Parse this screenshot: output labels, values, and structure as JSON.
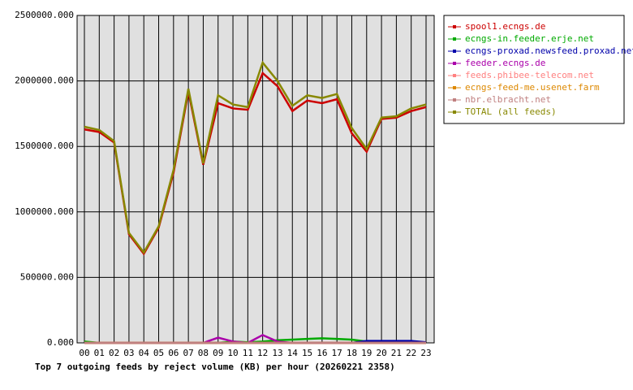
{
  "chart_data": {
    "type": "line",
    "title": "Top 7 outgoing feeds by reject volume (KB) per hour (20260221 2358)",
    "categories": [
      "00",
      "01",
      "02",
      "03",
      "04",
      "05",
      "06",
      "07",
      "08",
      "09",
      "10",
      "11",
      "12",
      "13",
      "14",
      "15",
      "16",
      "17",
      "18",
      "19",
      "20",
      "21",
      "22",
      "23"
    ],
    "ylim": [
      0,
      2500000
    ],
    "yticks": [
      {
        "value": 0,
        "label": "0.000"
      },
      {
        "value": 500000,
        "label": "500000.000"
      },
      {
        "value": 1000000,
        "label": "1000000.000"
      },
      {
        "value": 1500000,
        "label": "1500000.000"
      },
      {
        "value": 2000000,
        "label": "2000000.000"
      },
      {
        "value": 2500000,
        "label": "2500000.000"
      }
    ],
    "grid": true,
    "legend": "right",
    "series": [
      {
        "name": "spool1.ecngs.de",
        "color": "#cc0000",
        "values": [
          1630000,
          1610000,
          1530000,
          830000,
          680000,
          880000,
          1300000,
          1920000,
          1360000,
          1830000,
          1790000,
          1780000,
          2060000,
          1960000,
          1770000,
          1850000,
          1830000,
          1860000,
          1600000,
          1460000,
          1710000,
          1720000,
          1770000,
          1800000
        ]
      },
      {
        "name": "ecngs-in.feeder.erje.net",
        "color": "#00aa00",
        "values": [
          10000,
          0,
          0,
          0,
          0,
          0,
          0,
          0,
          0,
          0,
          10000,
          5000,
          10000,
          20000,
          25000,
          30000,
          35000,
          30000,
          25000,
          10000,
          5000,
          5000,
          5000,
          5000
        ]
      },
      {
        "name": "ecngs-proxad.newsfeed.proxad.net",
        "color": "#0000aa",
        "values": [
          0,
          0,
          0,
          0,
          0,
          0,
          0,
          0,
          0,
          0,
          0,
          0,
          0,
          0,
          0,
          0,
          0,
          0,
          0,
          15000,
          15000,
          15000,
          15000,
          5000
        ]
      },
      {
        "name": "feeder.ecngs.de",
        "color": "#aa00aa",
        "values": [
          0,
          0,
          0,
          0,
          0,
          0,
          0,
          0,
          0,
          40000,
          10000,
          0,
          60000,
          10000,
          0,
          0,
          0,
          0,
          0,
          0,
          0,
          0,
          0,
          0
        ]
      },
      {
        "name": "feeds.phibee-telecom.net",
        "color": "#ff8080",
        "values": [
          0,
          0,
          0,
          0,
          0,
          0,
          0,
          0,
          0,
          0,
          0,
          0,
          0,
          0,
          0,
          0,
          0,
          0,
          0,
          0,
          0,
          0,
          0,
          0
        ]
      },
      {
        "name": "ecngs-feed-me.usenet.farm",
        "color": "#dd8800",
        "values": [
          0,
          0,
          0,
          0,
          0,
          0,
          0,
          0,
          0,
          0,
          0,
          0,
          0,
          0,
          0,
          0,
          0,
          0,
          0,
          0,
          0,
          0,
          0,
          0
        ]
      },
      {
        "name": "nbr.elbracht.net",
        "color": "#c08080",
        "values": [
          0,
          0,
          0,
          0,
          0,
          0,
          0,
          0,
          0,
          0,
          0,
          0,
          0,
          0,
          0,
          0,
          0,
          0,
          0,
          0,
          0,
          0,
          0,
          0
        ]
      },
      {
        "name": "TOTAL (all feeds)",
        "color": "#888800",
        "values": [
          1650000,
          1625000,
          1540000,
          840000,
          690000,
          890000,
          1320000,
          1940000,
          1370000,
          1890000,
          1820000,
          1800000,
          2140000,
          2000000,
          1810000,
          1890000,
          1870000,
          1900000,
          1640000,
          1480000,
          1720000,
          1730000,
          1790000,
          1820000
        ]
      }
    ]
  }
}
